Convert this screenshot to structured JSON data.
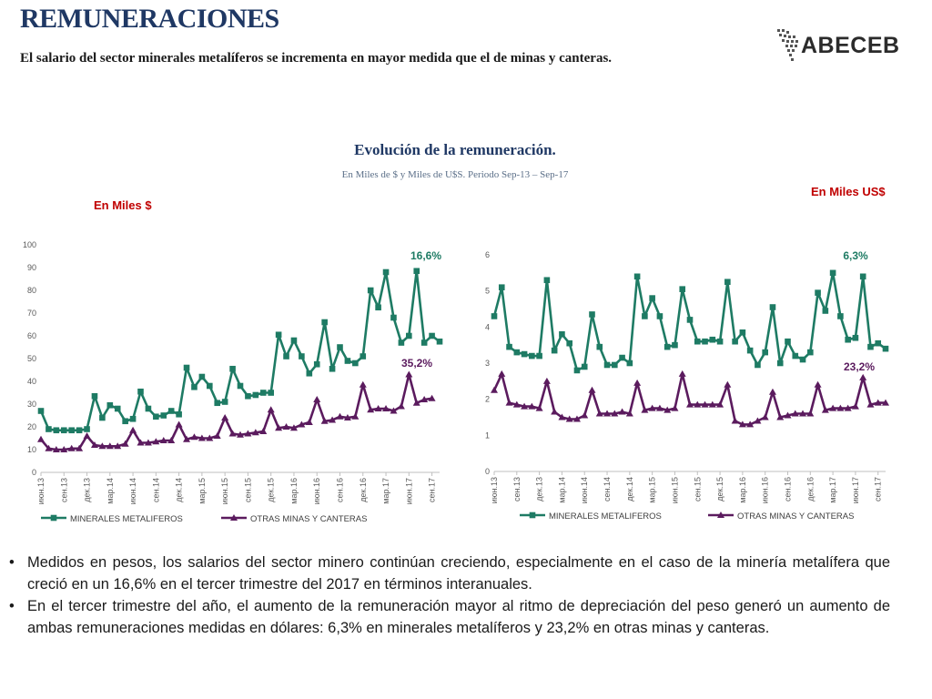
{
  "header": {
    "title": "REMUNERACIONES",
    "subtitle": "El salario del sector minerales metalíferos se incrementa en mayor medida que el de minas y canteras.",
    "logo_text": "ABECEB"
  },
  "chart_header": {
    "title": "Evolución de la remuneración.",
    "subtitle": "En Miles de $ y Miles de U$S. Periodo Sep-13 – Sep-17",
    "unit_left": "En Miles $",
    "unit_right": "En Miles US$"
  },
  "colors": {
    "series1": "#1e7b64",
    "series2": "#5b1b5e",
    "title": "#1f3864",
    "unit": "#c00000"
  },
  "chart_data": [
    {
      "type": "line",
      "x_tick_labels": [
        "июн.13",
        "сен.13",
        "дек.13",
        "мар.14",
        "июн.14",
        "сен.14",
        "дек.14",
        "мар.15",
        "июн.15",
        "сен.15",
        "дек.15",
        "мар.16",
        "июн.16",
        "сен.16",
        "дек.16",
        "мар.17",
        "июн.17",
        "сен.17"
      ],
      "ylim": [
        0,
        100
      ],
      "yticks": [
        0,
        10,
        20,
        30,
        40,
        50,
        60,
        70,
        80,
        90,
        100
      ],
      "series": [
        {
          "name": "MINERALES METALIFEROS",
          "marker": "square",
          "values": [
            27,
            19,
            18.5,
            18.5,
            18.5,
            18.5,
            19,
            33.5,
            24,
            29.5,
            28,
            22.5,
            23.5,
            35.5,
            28,
            24.5,
            25,
            27,
            25.5,
            46,
            37.5,
            42,
            38,
            30.5,
            31,
            45.5,
            38,
            33.5,
            34,
            35,
            35,
            60.5,
            51,
            58,
            51,
            43.5,
            47.5,
            66,
            45.5,
            55,
            49,
            48,
            51,
            80,
            72.5,
            88,
            68,
            57,
            60,
            88.5,
            57,
            60,
            57.5
          ]
        },
        {
          "name": "OTRAS MINAS Y CANTERAS",
          "marker": "triangle",
          "values": [
            14.5,
            10.5,
            10,
            10,
            10.5,
            10.5,
            16,
            12,
            11.5,
            11.5,
            11.5,
            12.5,
            18.5,
            13,
            13,
            13.5,
            14,
            14,
            21,
            14.5,
            15.5,
            15,
            15,
            16,
            24,
            17,
            16.5,
            17,
            17.5,
            18,
            27.5,
            19.5,
            20,
            19.5,
            21,
            22,
            32,
            22.5,
            23,
            24.5,
            24,
            24.5,
            38.5,
            27.5,
            28,
            28,
            27,
            29,
            43,
            30.5,
            32,
            32.5
          ]
        }
      ],
      "annotations": [
        "16,6%",
        "35,2%"
      ]
    },
    {
      "type": "line",
      "x_tick_labels": [
        "июн.13",
        "сен.13",
        "дек.13",
        "мар.14",
        "июн.14",
        "сен.14",
        "дек.14",
        "мар.15",
        "июн.15",
        "сен.15",
        "дек.15",
        "мар.16",
        "июн.16",
        "сен.16",
        "дек.16",
        "мар.17",
        "июн.17",
        "сен.17"
      ],
      "ylim": [
        0,
        6
      ],
      "yticks": [
        0,
        1,
        2,
        3,
        4,
        5,
        6
      ],
      "series": [
        {
          "name": "MINERALES METALIFEROS",
          "marker": "square",
          "values": [
            4.3,
            5.1,
            3.45,
            3.3,
            3.25,
            3.2,
            3.2,
            5.3,
            3.35,
            3.8,
            3.55,
            2.8,
            2.9,
            4.35,
            3.45,
            2.95,
            2.95,
            3.15,
            3.0,
            5.4,
            4.3,
            4.8,
            4.3,
            3.45,
            3.5,
            5.05,
            4.2,
            3.6,
            3.6,
            3.65,
            3.6,
            5.25,
            3.6,
            3.85,
            3.35,
            2.95,
            3.3,
            4.55,
            3.0,
            3.6,
            3.2,
            3.1,
            3.3,
            4.95,
            4.45,
            5.5,
            4.3,
            3.65,
            3.7,
            5.4,
            3.45,
            3.55,
            3.4
          ]
        },
        {
          "name": "OTRAS MINAS Y CANTERAS",
          "marker": "triangle",
          "values": [
            2.25,
            2.7,
            1.9,
            1.85,
            1.8,
            1.8,
            1.75,
            2.5,
            1.65,
            1.5,
            1.45,
            1.45,
            1.55,
            2.25,
            1.6,
            1.6,
            1.6,
            1.65,
            1.6,
            2.45,
            1.7,
            1.75,
            1.75,
            1.7,
            1.75,
            2.7,
            1.85,
            1.85,
            1.85,
            1.85,
            1.85,
            2.4,
            1.4,
            1.3,
            1.3,
            1.4,
            1.5,
            2.2,
            1.5,
            1.55,
            1.6,
            1.6,
            1.6,
            2.4,
            1.7,
            1.75,
            1.75,
            1.75,
            1.8,
            2.6,
            1.85,
            1.9,
            1.9
          ]
        }
      ],
      "annotations": [
        "6,3%",
        "23,2%"
      ]
    }
  ],
  "bullets": [
    "Medidos en pesos, los salarios del sector minero continúan creciendo, especialmente en el caso de la minería metalífera que creció en un 16,6% en el tercer trimestre del 2017 en términos interanuales.",
    "En el tercer trimestre del año, el aumento de la remuneración mayor al ritmo de depreciación del peso generó un aumento de ambas remuneraciones medidas en dólares: 6,3% en minerales metalíferos y 23,2% en otras minas y canteras."
  ],
  "bullet_symbol": "•"
}
